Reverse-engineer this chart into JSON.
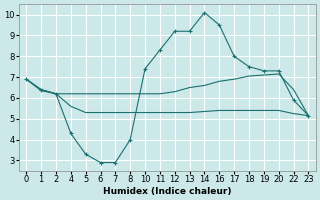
{
  "xlabel": "Humidex (Indice chaleur)",
  "bg_color": "#cce8e8",
  "grid_color": "#ffffff",
  "line_color": "#1a7070",
  "tick_labels": [
    "0",
    "1",
    "2",
    "4",
    "5",
    "6",
    "7",
    "8",
    "10",
    "11",
    "12",
    "13",
    "14",
    "16",
    "17",
    "18",
    "19",
    "20",
    "22",
    "23"
  ],
  "line1_y": [
    6.9,
    6.4,
    6.2,
    4.3,
    3.3,
    2.9,
    2.9,
    4.0,
    7.4,
    8.3,
    9.2,
    9.2,
    10.1,
    9.5,
    8.0,
    7.5,
    7.3,
    7.3,
    5.9,
    5.15
  ],
  "line2_y": [
    6.9,
    6.4,
    6.2,
    6.2,
    6.2,
    6.2,
    6.2,
    6.2,
    6.2,
    6.2,
    6.3,
    6.5,
    6.6,
    6.8,
    6.9,
    7.05,
    7.1,
    7.15,
    6.4,
    5.15
  ],
  "line3_y": [
    6.9,
    6.35,
    6.2,
    5.6,
    5.3,
    5.3,
    5.3,
    5.3,
    5.3,
    5.3,
    5.3,
    5.3,
    5.35,
    5.4,
    5.4,
    5.4,
    5.4,
    5.4,
    5.25,
    5.15
  ],
  "xlim": [
    -0.5,
    19.5
  ],
  "ylim": [
    2.5,
    10.5
  ],
  "yticks": [
    3,
    4,
    5,
    6,
    7,
    8,
    9,
    10
  ]
}
